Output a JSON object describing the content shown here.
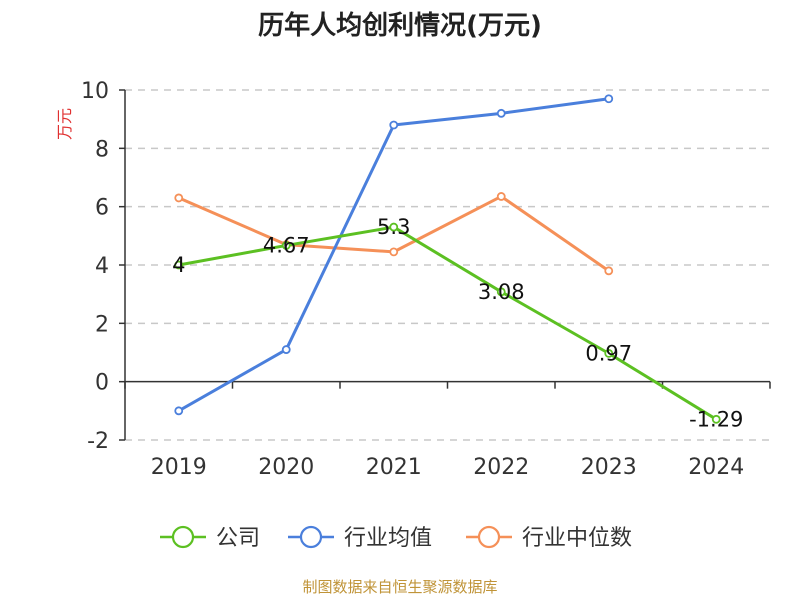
{
  "colors": {
    "company": "#5cc022",
    "industry_avg": "#4a7fdc",
    "industry_median": "#f59058",
    "unit": "#e03030",
    "source": "#c09438",
    "grid": "#c8c8c8",
    "axis": "#333333"
  },
  "chart_data": {
    "type": "line",
    "title": "历年人均创利情况(万元)",
    "ylabel": "万元",
    "xlabel": "",
    "categories": [
      "2019",
      "2020",
      "2021",
      "2022",
      "2023",
      "2024"
    ],
    "ylim": [
      -2,
      10
    ],
    "yticks": [
      10,
      8,
      6,
      4,
      2,
      0,
      -2
    ],
    "grid": "horizontal-dashed",
    "legend_position": "bottom-center",
    "series": [
      {
        "name": "公司",
        "key": "company",
        "values": [
          4,
          4.67,
          5.3,
          3.08,
          0.97,
          -1.29
        ],
        "labels": [
          "4",
          "4.67",
          "5.3",
          "3.08",
          "0.97",
          "-1.29"
        ]
      },
      {
        "name": "行业均值",
        "key": "industry_avg",
        "values": [
          -1.0,
          1.1,
          8.8,
          9.2,
          9.7,
          null
        ]
      },
      {
        "name": "行业中位数",
        "key": "industry_median",
        "values": [
          6.3,
          4.7,
          4.45,
          6.35,
          3.8,
          null
        ]
      }
    ]
  },
  "source": "制图数据来自恒生聚源数据库"
}
